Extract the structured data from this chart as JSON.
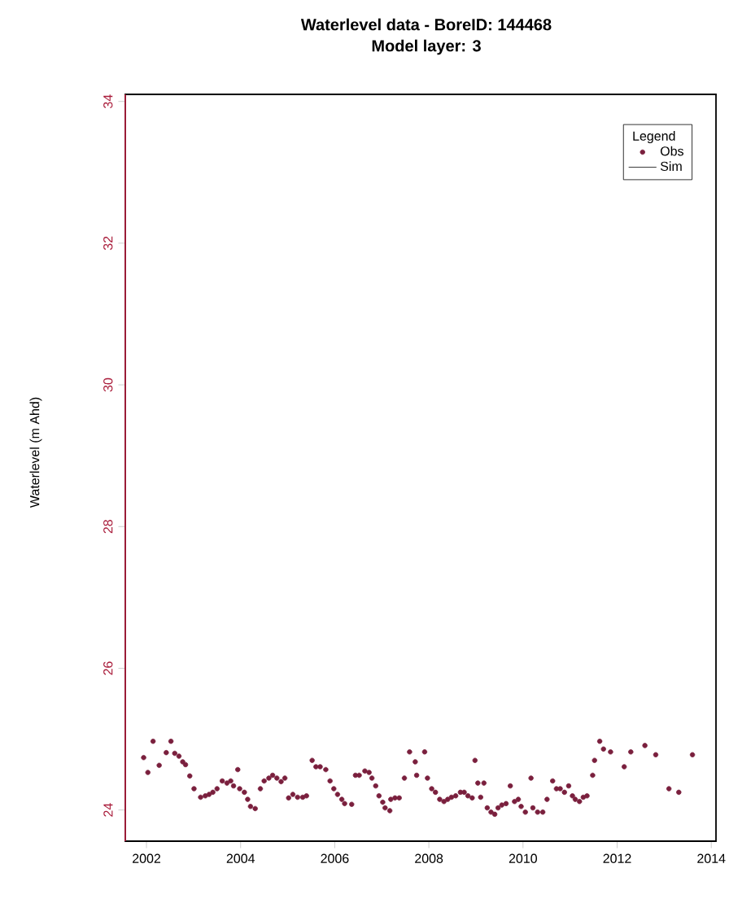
{
  "chart_data": {
    "type": "scatter",
    "title": "Waterlevel data - BoreID:  144468",
    "subtitle": "Model layer: 3",
    "ylabel": "Waterlevel (m Ahd)",
    "legend_title": "Legend",
    "legend": "top right",
    "marker": "circle",
    "xlim": [
      2001.55,
      2014.1
    ],
    "xticks": [
      2002,
      2004,
      2006,
      2008,
      2010,
      2012,
      2014
    ],
    "ylim": [
      23.56,
      34.1
    ],
    "yticks": [
      24,
      26,
      28,
      30,
      32,
      34
    ],
    "series": [
      {
        "name": "Obs",
        "color": "#7a1f3d",
        "x": [
          2001.94,
          2002.03,
          2002.14,
          2002.27,
          2002.42,
          2002.52,
          2002.6,
          2002.69,
          2002.77,
          2002.83,
          2002.92,
          2003.01,
          2003.15,
          2003.25,
          2003.33,
          2003.41,
          2003.5,
          2003.61,
          2003.71,
          2003.79,
          2003.85,
          2003.94,
          2003.98,
          2004.08,
          2004.15,
          2004.21,
          2004.31,
          2004.42,
          2004.5,
          2004.6,
          2004.68,
          2004.77,
          2004.86,
          2004.94,
          2005.02,
          2005.11,
          2005.21,
          2005.32,
          2005.4,
          2005.52,
          2005.6,
          2005.69,
          2005.81,
          2005.9,
          2005.98,
          2006.06,
          2006.15,
          2006.21,
          2006.36,
          2006.44,
          2006.52,
          2006.64,
          2006.73,
          2006.79,
          2006.87,
          2006.94,
          2007.02,
          2007.07,
          2007.17,
          2007.19,
          2007.28,
          2007.37,
          2007.48,
          2007.59,
          2007.71,
          2007.74,
          2007.91,
          2007.97,
          2008.06,
          2008.14,
          2008.23,
          2008.32,
          2008.4,
          2008.48,
          2008.57,
          2008.67,
          2008.75,
          2008.83,
          2008.92,
          2008.98,
          2009.04,
          2009.1,
          2009.17,
          2009.24,
          2009.32,
          2009.4,
          2009.47,
          2009.55,
          2009.64,
          2009.73,
          2009.82,
          2009.9,
          2009.96,
          2010.05,
          2010.17,
          2010.21,
          2010.31,
          2010.42,
          2010.51,
          2010.63,
          2010.71,
          2010.79,
          2010.88,
          2010.97,
          2011.05,
          2011.11,
          2011.2,
          2011.28,
          2011.36,
          2011.48,
          2011.52,
          2011.63,
          2011.71,
          2011.86,
          2012.15,
          2012.29,
          2012.59,
          2012.82,
          2013.1,
          2013.31,
          2013.6
        ],
        "values": [
          24.74,
          24.53,
          24.97,
          24.63,
          24.81,
          24.97,
          24.8,
          24.76,
          24.68,
          24.64,
          24.48,
          24.3,
          24.18,
          24.2,
          24.22,
          24.25,
          24.3,
          24.41,
          24.38,
          24.41,
          24.34,
          24.57,
          24.3,
          24.25,
          24.15,
          24.05,
          24.02,
          24.3,
          24.41,
          24.45,
          24.49,
          24.45,
          24.4,
          24.45,
          24.17,
          24.22,
          24.18,
          24.18,
          24.2,
          24.7,
          24.61,
          24.61,
          24.57,
          24.41,
          24.3,
          24.22,
          24.15,
          24.09,
          24.08,
          24.49,
          24.49,
          24.55,
          24.53,
          24.45,
          24.34,
          24.2,
          24.11,
          24.03,
          23.99,
          24.15,
          24.17,
          24.17,
          24.45,
          24.82,
          24.68,
          24.49,
          24.82,
          24.45,
          24.3,
          24.25,
          24.15,
          24.12,
          24.15,
          24.18,
          24.2,
          24.25,
          24.25,
          24.2,
          24.17,
          24.7,
          24.38,
          24.18,
          24.38,
          24.03,
          23.97,
          23.94,
          24.03,
          24.07,
          24.09,
          24.34,
          24.12,
          24.15,
          24.05,
          23.97,
          24.45,
          24.03,
          23.97,
          23.97,
          24.15,
          24.41,
          24.3,
          24.3,
          24.25,
          24.34,
          24.2,
          24.15,
          24.12,
          24.18,
          24.2,
          24.49,
          24.7,
          24.97,
          24.86,
          24.82,
          24.61,
          24.82,
          24.91,
          24.78,
          24.3,
          24.25,
          24.78
        ]
      },
      {
        "name": "Sim",
        "type": "line",
        "color": "#000000"
      }
    ]
  }
}
